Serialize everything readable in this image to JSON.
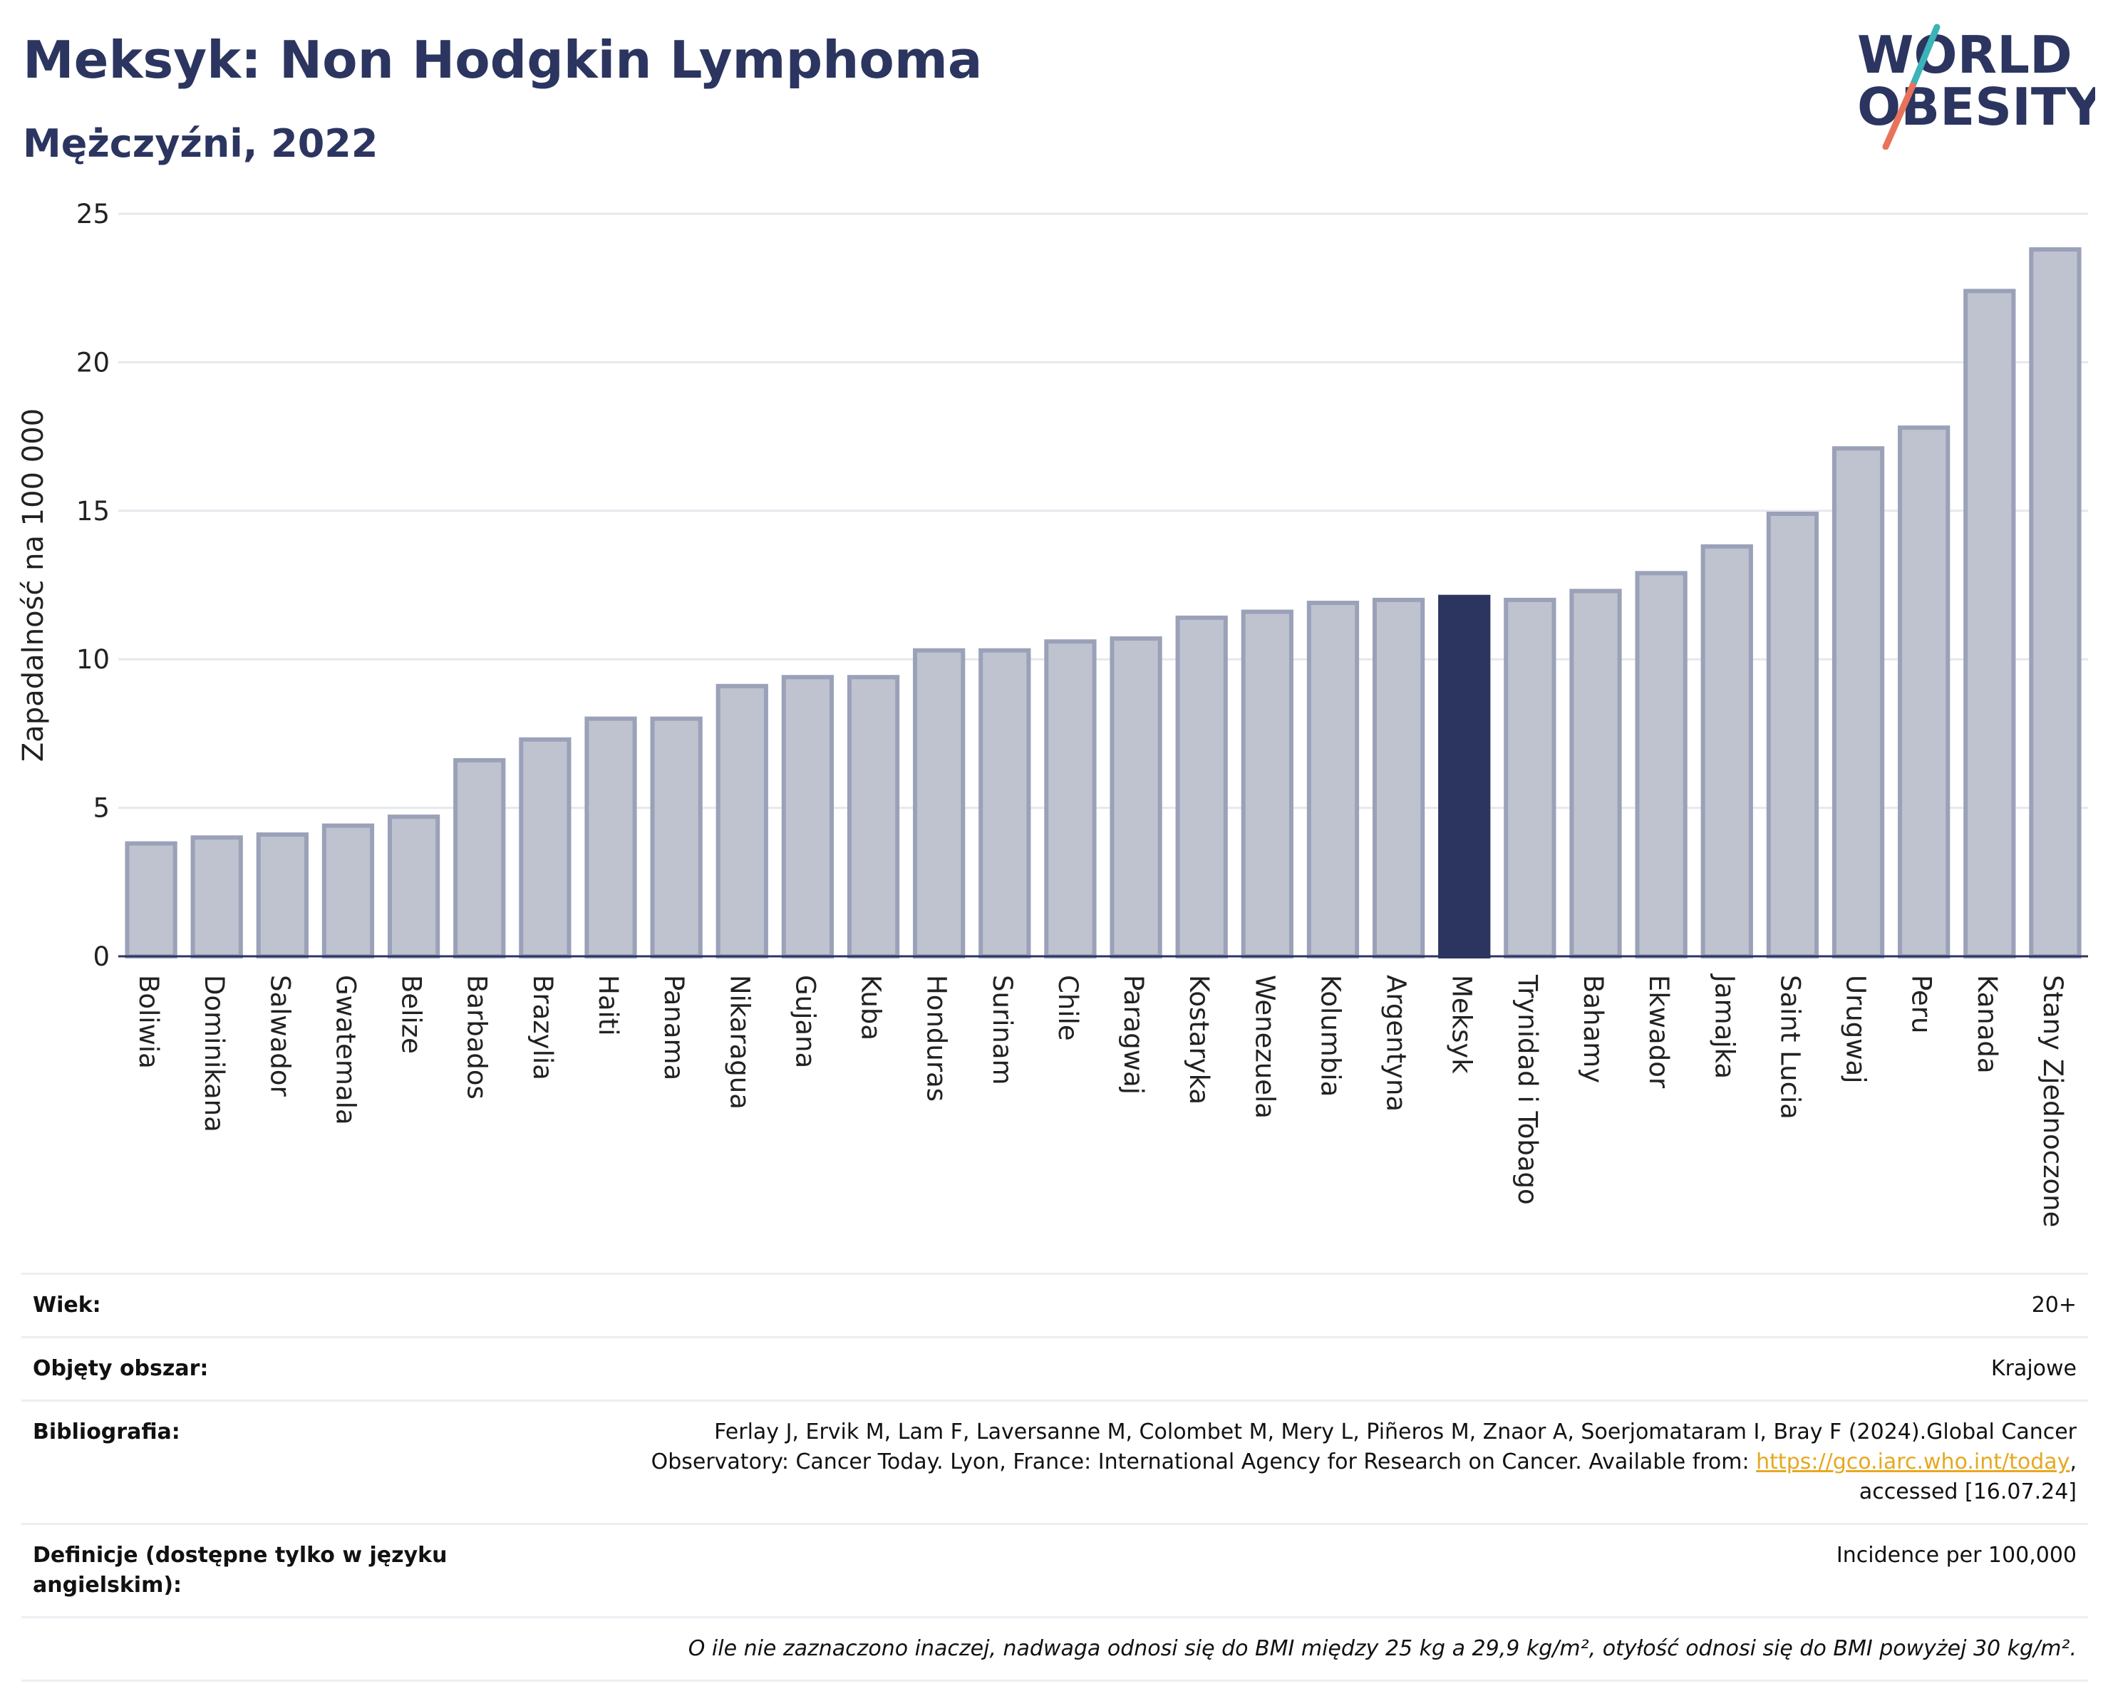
{
  "header": {
    "title": "Meksyk: Non Hodgkin Lymphoma",
    "subtitle": "Mężczyźni, 2022"
  },
  "logo": {
    "line1": "WORLD",
    "line2": "OBESITY"
  },
  "colors": {
    "bar": "#bfc3cf",
    "bar_edge": "#9aa1b8",
    "highlight": "#2b3560",
    "title": "#2b3560",
    "logo_teal": "#3bb3b8",
    "logo_coral": "#e8735a"
  },
  "chart_data": {
    "type": "bar",
    "ylabel": "Zapadalność na 100 000",
    "ylim": [
      0,
      25
    ],
    "yticks": [
      0,
      5,
      10,
      15,
      20,
      25
    ],
    "grid": true,
    "highlight": "Meksyk",
    "categories": [
      "Boliwia",
      "Dominikana",
      "Salwador",
      "Gwatemala",
      "Belize",
      "Barbados",
      "Brazylia",
      "Haiti",
      "Panama",
      "Nikaragua",
      "Gujana",
      "Kuba",
      "Honduras",
      "Surinam",
      "Chile",
      "Paragwaj",
      "Kostaryka",
      "Wenezuela",
      "Kolumbia",
      "Argentyna",
      "Meksyk",
      "Trynidad i Tobago",
      "Bahamy",
      "Ekwador",
      "Jamajka",
      "Saint Lucia",
      "Urugwaj",
      "Peru",
      "Kanada",
      "Stany Zjednoczone"
    ],
    "values": [
      3.8,
      4.0,
      4.1,
      4.4,
      4.7,
      6.6,
      7.3,
      8.0,
      8.0,
      9.1,
      9.4,
      9.4,
      10.3,
      10.3,
      10.6,
      10.7,
      11.4,
      11.6,
      11.9,
      12.0,
      12.1,
      12.0,
      12.3,
      12.9,
      13.8,
      14.9,
      17.1,
      17.8,
      22.4,
      23.8
    ]
  },
  "info": {
    "age_label": "Wiek:",
    "age_value": "20+",
    "coverage_label": "Objęty obszar:",
    "coverage_value": "Krajowe",
    "biblio_label": "Bibliografia:",
    "biblio_line1": "Ferlay J, Ervik M, Lam F, Laversanne M, Colombet M, Mery L, Piñeros M, Znaor A, Soerjomataram I, Bray F (2024).Global Cancer",
    "biblio_line2": "Observatory: Cancer Today. Lyon, France: International Agency for Research on Cancer. Available from:",
    "biblio_link": "https://gco.iarc.who.int/today",
    "biblio_line3": "accessed [16.07.24]",
    "definitions_label": "Definicje (dostępne tylko w języku angielskim):",
    "definitions_value": "Incidence per 100,000",
    "note": "O ile nie zaznaczono inaczej, nadwaga odnosi się do BMI między 25 kg a 29,9 kg/m², otyłość odnosi się do BMI powyżej 30 kg/m²."
  }
}
